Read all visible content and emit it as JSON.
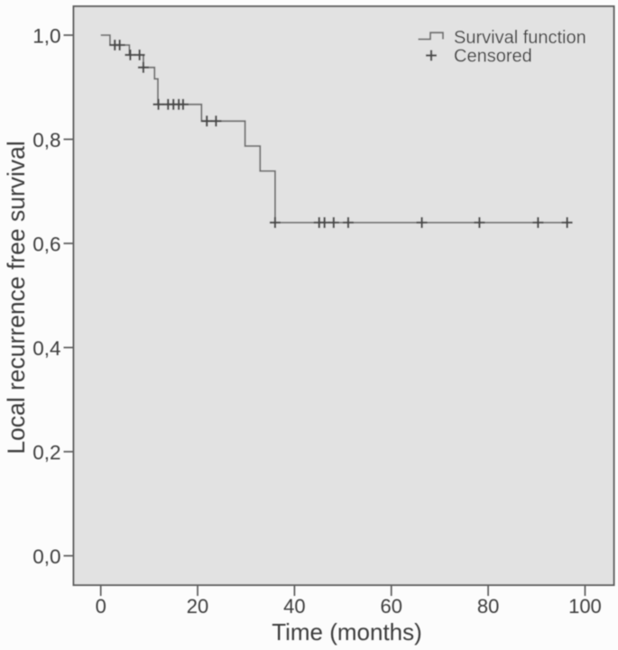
{
  "figure": {
    "kind": "kaplan-meier-plot",
    "background": "#fcfcfc"
  },
  "chart_data": {
    "type": "line",
    "subtype": "kaplan-meier-step",
    "title": "",
    "xlabel": "Time (months)",
    "ylabel": "Local recurrence free survival",
    "xlim": [
      0,
      100
    ],
    "ylim": [
      0.0,
      1.0
    ],
    "grid": false,
    "x_ticks": {
      "values": [
        0,
        20,
        40,
        60,
        80,
        100
      ],
      "labels": [
        "0",
        "20",
        "40",
        "60",
        "80",
        "100"
      ]
    },
    "y_ticks": {
      "values": [
        0.0,
        0.2,
        0.4,
        0.6,
        0.8,
        1.0
      ],
      "labels": [
        "0,0",
        "0,2",
        "0,4",
        "0,6",
        "0,8",
        "1,0"
      ]
    },
    "legend": {
      "position": "top-right",
      "entries": [
        {
          "label": "Survival function",
          "marker": "step-line"
        },
        {
          "label": "Censored",
          "marker": "plus"
        }
      ]
    },
    "series": [
      {
        "name": "Survival function",
        "style": "step-post",
        "start": [
          0,
          1.0
        ],
        "drops": [
          [
            1.9,
            0.981
          ],
          [
            5.9,
            0.962
          ],
          [
            8.8,
            0.938
          ],
          [
            11.1,
            0.916
          ],
          [
            11.8,
            0.867
          ],
          [
            20.8,
            0.835
          ],
          [
            29.8,
            0.787
          ],
          [
            32.9,
            0.739
          ],
          [
            36.0,
            0.64
          ]
        ],
        "end_time": 96.7
      }
    ],
    "censored": [
      [
        2.9,
        0.981
      ],
      [
        3.9,
        0.981
      ],
      [
        6.1,
        0.962
      ],
      [
        8.0,
        0.962
      ],
      [
        8.8,
        0.938
      ],
      [
        11.9,
        0.867
      ],
      [
        13.9,
        0.867
      ],
      [
        15.0,
        0.867
      ],
      [
        16.1,
        0.867
      ],
      [
        17.0,
        0.867
      ],
      [
        21.9,
        0.835
      ],
      [
        23.8,
        0.835
      ],
      [
        36.0,
        0.64
      ],
      [
        45.1,
        0.64
      ],
      [
        46.2,
        0.64
      ],
      [
        48.1,
        0.64
      ],
      [
        51.1,
        0.64
      ],
      [
        66.3,
        0.64
      ],
      [
        78.2,
        0.64
      ],
      [
        90.3,
        0.64
      ],
      [
        96.3,
        0.64
      ]
    ],
    "colors": {
      "plot_background": "#e2e2e2",
      "frame": "#616161",
      "curve": "#6e6e6e",
      "censor_marks": "#484848",
      "ticks": "#5a5a5a",
      "text": "#3d3d3d"
    }
  }
}
